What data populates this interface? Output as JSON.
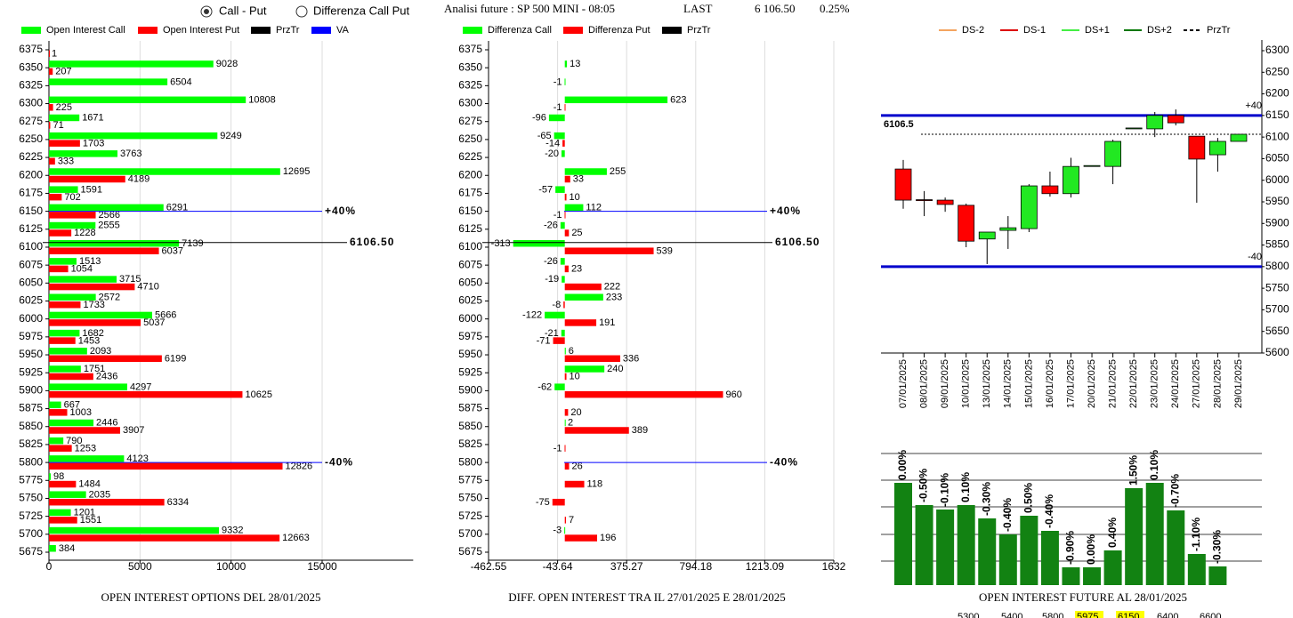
{
  "header": {
    "mode_1": "Call - Put",
    "mode_2": "Differenza Call Put",
    "title": "Analisi future : SP 500 MINI - 08:05",
    "last_label": "LAST",
    "last_value": "6 106.50",
    "change": "0.25%"
  },
  "chart_data": [
    {
      "type": "hbar",
      "title": "OPEN INTEREST OPTIONS DEL 28/01/2025",
      "categories": [
        6375,
        6350,
        6325,
        6300,
        6275,
        6250,
        6225,
        6200,
        6175,
        6150,
        6125,
        6100,
        6075,
        6050,
        6025,
        6000,
        5975,
        5950,
        5925,
        5900,
        5875,
        5850,
        5825,
        5800,
        5775,
        5750,
        5725,
        5700,
        5675
      ],
      "series": [
        {
          "name": "Open Interest Call",
          "color": "#00ff00",
          "values": [
            null,
            9028,
            6504,
            10808,
            1671,
            9249,
            3763,
            12695,
            1591,
            6291,
            2555,
            7139,
            1513,
            3715,
            2572,
            5666,
            1682,
            2093,
            1751,
            4297,
            667,
            2446,
            790,
            4123,
            98,
            2035,
            1201,
            9332,
            384
          ]
        },
        {
          "name": "Open Interest Put",
          "color": "#ff0000",
          "values": [
            1,
            207,
            null,
            225,
            71,
            1703,
            333,
            4189,
            702,
            2566,
            1228,
            6037,
            1054,
            4710,
            1733,
            5037,
            1453,
            6199,
            2436,
            10625,
            1003,
            3907,
            1253,
            12826,
            1484,
            6334,
            1551,
            12663,
            null
          ]
        }
      ],
      "legend_extra": [
        {
          "name": "PrzTr",
          "color": "#000000"
        },
        {
          "name": "VA",
          "color": "#0000ff"
        }
      ],
      "xlim": [
        0,
        20000
      ],
      "xticks": [
        0,
        5000,
        10000,
        15000
      ],
      "grid": true,
      "annotations": [
        {
          "value": 6150,
          "label": "+40%",
          "color": "#0000ff"
        },
        {
          "value": 6106.5,
          "label": "6106.50",
          "color": "#000000"
        },
        {
          "value": 5800,
          "label": "-40%",
          "color": "#0000ff"
        }
      ]
    },
    {
      "type": "hbar",
      "title": "DIFF. OPEN INTEREST TRA IL 27/01/2025 E 28/01/2025",
      "categories": [
        6375,
        6350,
        6325,
        6300,
        6275,
        6250,
        6225,
        6200,
        6175,
        6150,
        6125,
        6100,
        6075,
        6050,
        6025,
        6000,
        5975,
        5950,
        5925,
        5900,
        5875,
        5850,
        5825,
        5800,
        5775,
        5750,
        5725,
        5700,
        5675
      ],
      "series": [
        {
          "name": "Differenza Call",
          "color": "#00ff00",
          "values": [
            null,
            13,
            -1,
            623,
            -96,
            -65,
            -20,
            255,
            -57,
            112,
            -26,
            -313,
            -26,
            -19,
            233,
            -122,
            -21,
            6,
            240,
            -62,
            null,
            2,
            null,
            null,
            null,
            null,
            null,
            -3,
            null
          ]
        },
        {
          "name": "Differenza Put",
          "color": "#ff0000",
          "values": [
            null,
            null,
            null,
            -1,
            null,
            -14,
            null,
            33,
            10,
            -1,
            25,
            539,
            23,
            222,
            -8,
            191,
            -71,
            336,
            10,
            960,
            20,
            389,
            -1,
            26,
            118,
            -75,
            7,
            196,
            null
          ]
        }
      ],
      "legend_extra": [
        {
          "name": "PrzTr",
          "color": "#000000"
        }
      ],
      "xlim": [
        -462.55,
        1632
      ],
      "xticks": [
        -462.55,
        -43.64,
        375.27,
        794.18,
        1213.09,
        1632
      ],
      "grid": true,
      "annotations": [
        {
          "value": 6150,
          "label": "+40%",
          "color": "#0000ff"
        },
        {
          "value": 6106.5,
          "label": "6106.50",
          "color": "#000000"
        },
        {
          "value": 5800,
          "label": "-40%",
          "color": "#0000ff"
        }
      ]
    },
    {
      "type": "candlestick",
      "categories": [
        "07/01/2025",
        "08/01/2025",
        "09/01/2025",
        "10/01/2025",
        "13/01/2025",
        "14/01/2025",
        "15/01/2025",
        "16/01/2025",
        "17/01/2025",
        "20/01/2025",
        "21/01/2025",
        "22/01/2025",
        "23/01/2025",
        "24/01/2025",
        "27/01/2025",
        "28/01/2025",
        "29/01/2025"
      ],
      "open": [
        6026,
        5955,
        5954,
        5942,
        5864,
        5884,
        5888,
        5987,
        5969,
        6034,
        6032,
        6121,
        6119,
        6150,
        6102,
        6059,
        6090
      ],
      "high": [
        6047,
        5975,
        5960,
        5946,
        5880,
        5917,
        5991,
        6020,
        6052,
        6034,
        6094,
        6121,
        6158,
        6164,
        6102,
        6098,
        6106.5
      ],
      "low": [
        5934,
        5917,
        5927,
        5845,
        5806,
        5841,
        5880,
        5962,
        5960,
        6034,
        5991,
        6121,
        6100,
        6127,
        5948,
        6020,
        6090
      ],
      "close": [
        5954,
        5954,
        5944,
        5859,
        5880,
        5890,
        5987,
        5969,
        6032,
        6034,
        6090,
        6121,
        6150,
        6133,
        6049,
        6090,
        6106.5
      ],
      "up_color": "#22e822",
      "down_color": "#ff0000",
      "legend": [
        {
          "name": "DS-2",
          "color": "#f4a460",
          "dash": false
        },
        {
          "name": "DS-1",
          "color": "#dd0000",
          "dash": false
        },
        {
          "name": "DS+1",
          "color": "#44ee44",
          "dash": false
        },
        {
          "name": "DS+2",
          "color": "#007700",
          "dash": false
        },
        {
          "name": "PrzTr",
          "color": "#000000",
          "dash": true
        }
      ],
      "ylim": [
        5600,
        6300
      ],
      "yticks": [
        5600,
        5650,
        5700,
        5750,
        5800,
        5850,
        5900,
        5950,
        6000,
        6050,
        6100,
        6150,
        6200,
        6250,
        6300
      ],
      "annotations": [
        {
          "value": 6150,
          "label": "+40",
          "color": "#0000cc",
          "dash": false
        },
        {
          "value": 5800,
          "label": "-40",
          "color": "#0000cc",
          "dash": false
        },
        {
          "value": 6106.5,
          "label": "6106.5",
          "color": "#000000",
          "dash": true
        }
      ]
    },
    {
      "type": "bar",
      "title": "OPEN INTEREST FUTURE AL 28/01/2025",
      "values": [
        115,
        90,
        85,
        90,
        75,
        57,
        78,
        61,
        20,
        20,
        39,
        109,
        115,
        84,
        35,
        21
      ],
      "labels": [
        "0.00%",
        "-0.50%",
        "-0.10%",
        "0.10%",
        "-0.30%",
        "-0.40%",
        "0.50%",
        "-0.40%",
        "-0.90%",
        "0.00%",
        "0.40%",
        "1.50%",
        "0.10%",
        "-0.70%",
        "-1.10%",
        "-0.30%"
      ],
      "color": "#128212",
      "ylim": [
        0,
        158
      ],
      "levels": [
        5300,
        5400,
        5800,
        5975,
        6150,
        6400,
        6600
      ],
      "highlight": [
        false,
        false,
        false,
        true,
        true,
        false,
        false
      ]
    }
  ]
}
